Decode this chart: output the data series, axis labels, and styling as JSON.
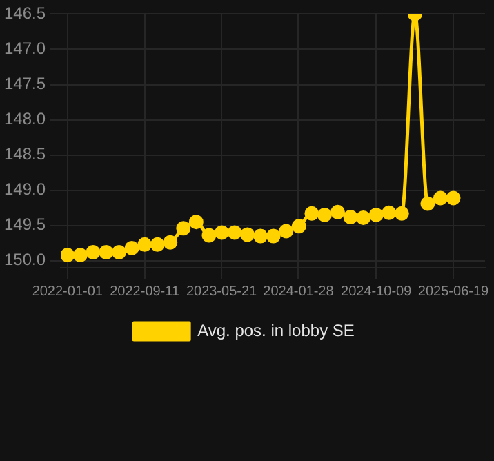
{
  "chart_data": {
    "type": "line",
    "x": [
      "2022-01-01",
      "2022-02-12",
      "2022-03-26",
      "2022-05-08",
      "2022-06-19",
      "2022-07-31",
      "2022-09-11",
      "2022-10-23",
      "2022-12-04",
      "2023-01-16",
      "2023-02-27",
      "2023-04-10",
      "2023-05-22",
      "2023-07-03",
      "2023-08-14",
      "2023-09-26",
      "2023-11-07",
      "2023-12-19",
      "2024-01-30",
      "2024-03-12",
      "2024-04-23",
      "2024-06-05",
      "2024-07-17",
      "2024-08-28",
      "2024-10-09",
      "2024-11-20",
      "2025-01-01",
      "2025-02-13",
      "2025-03-27",
      "2025-05-08",
      "2025-06-19"
    ],
    "series": [
      {
        "name": "Avg. pos. in lobby SE",
        "color": "#ffd200",
        "values": [
          149.92,
          149.92,
          149.88,
          149.88,
          149.88,
          149.82,
          149.77,
          149.77,
          149.74,
          149.54,
          149.45,
          149.64,
          149.6,
          149.6,
          149.63,
          149.65,
          149.65,
          149.58,
          149.51,
          149.33,
          149.35,
          149.31,
          149.38,
          149.39,
          149.35,
          149.32,
          149.33,
          146.5,
          149.19,
          149.11,
          149.11
        ]
      }
    ],
    "xlim": [
      "2021-12-10",
      "2025-10-01"
    ],
    "xticks": [
      "2022-01-01",
      "2022-09-11",
      "2023-05-21",
      "2024-01-28",
      "2024-10-09",
      "2025-06-19"
    ],
    "ylim": [
      150.1,
      146.5
    ],
    "yticks": [
      {
        "value": 146.5,
        "label": "146.5"
      },
      {
        "value": 147,
        "label": "147.0"
      },
      {
        "value": 147.5,
        "label": "147.5"
      },
      {
        "value": 148,
        "label": "148.0"
      },
      {
        "value": 148.5,
        "label": "148.5"
      },
      {
        "value": 149,
        "label": "149.0"
      },
      {
        "value": 149.5,
        "label": "149.5"
      },
      {
        "value": 150,
        "label": "150.0"
      }
    ],
    "grid": true,
    "legend": "bottom",
    "marker": "circle",
    "line_style": "solid"
  }
}
